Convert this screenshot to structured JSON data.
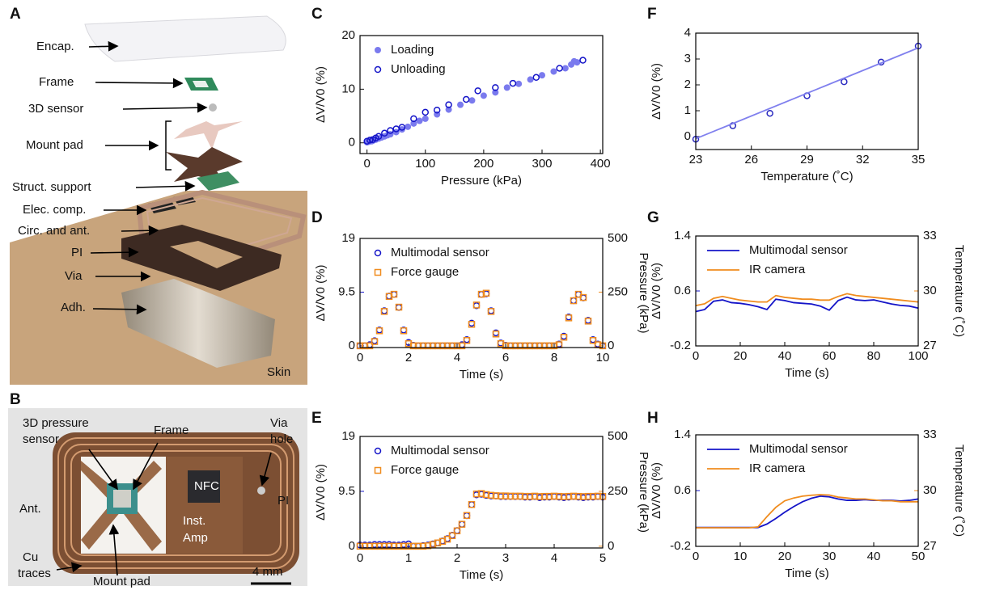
{
  "panels": {
    "A": {
      "label": "A",
      "annotations": [
        "Encap.",
        "Frame",
        "3D sensor",
        "Mount pad",
        "Struct. support",
        "Elec. comp.",
        "Circ. and ant.",
        "PI",
        "Via",
        "Adh.",
        "Skin"
      ]
    },
    "B": {
      "label": "B",
      "annotations": [
        [
          "3D pressure",
          "sensor"
        ],
        "Frame",
        [
          "Via",
          "hole"
        ],
        "Ant.",
        "PI",
        "NFC",
        [
          "Inst.",
          "Amp"
        ],
        [
          "Cu",
          "traces"
        ],
        "Mount pad",
        "4 mm"
      ]
    }
  },
  "chart_data": [
    {
      "type": "scatter",
      "panel": "C",
      "xlabel": "Pressure (kPa)",
      "ylabel": "ΔV/V0 (%)",
      "xlim": [
        -12,
        404
      ],
      "xticks": [
        0,
        100,
        200,
        300,
        400
      ],
      "ylim": [
        -2,
        20
      ],
      "yticks": [
        0,
        10,
        20
      ],
      "legend": "upper left",
      "series": [
        {
          "name": "Loading",
          "color": "#7a7aee",
          "marker": "circle",
          "x": [
            0,
            3,
            5,
            8,
            10,
            15,
            20,
            25,
            30,
            35,
            40,
            50,
            60,
            70,
            80,
            90,
            100,
            120,
            140,
            160,
            180,
            200,
            220,
            240,
            260,
            280,
            300,
            320,
            340,
            350,
            355,
            360
          ],
          "values": [
            0.1,
            0.2,
            0.3,
            0.3,
            0.4,
            0.6,
            0.8,
            1.0,
            1.2,
            1.4,
            1.6,
            2.0,
            2.5,
            3.0,
            3.6,
            4.1,
            4.5,
            5.3,
            6.2,
            7.1,
            7.9,
            8.8,
            9.4,
            10.3,
            11.0,
            11.8,
            12.6,
            13.3,
            13.9,
            14.6,
            15.2,
            15.0
          ]
        },
        {
          "name": "Unloading",
          "color": "#1414c8",
          "marker": "circle-open",
          "x": [
            0,
            5,
            10,
            15,
            20,
            30,
            40,
            50,
            60,
            80,
            100,
            120,
            140,
            170,
            190,
            220,
            250,
            290,
            330,
            370
          ],
          "values": [
            0.3,
            0.5,
            0.6,
            0.9,
            1.2,
            1.8,
            2.3,
            2.6,
            2.9,
            4.5,
            5.7,
            6.1,
            7.1,
            8.1,
            9.7,
            10.3,
            11.1,
            12.2,
            13.9,
            15.4
          ]
        }
      ]
    },
    {
      "type": "scatter",
      "panel": "D",
      "xlabel": "Time (s)",
      "ylabel": "ΔV/V0 (%)",
      "y2label": "Pressure (kPa)",
      "xlim": [
        0,
        10
      ],
      "xticks": [
        0,
        2,
        4,
        6,
        8,
        10
      ],
      "ylim": [
        -0.3,
        19
      ],
      "yticks": [
        0,
        9.5,
        19
      ],
      "y2lim": [
        -8,
        500
      ],
      "y2ticks": [
        0,
        250,
        500
      ],
      "y_color": "#1414c8",
      "y2_color": "#f08c1e",
      "legend": "upper left",
      "x": [
        0,
        0.2,
        0.4,
        0.6,
        0.8,
        1,
        1.2,
        1.4,
        1.6,
        1.8,
        2,
        2.2,
        2.4,
        2.6,
        2.8,
        3,
        3.2,
        3.4,
        3.6,
        3.8,
        4,
        4.2,
        4.4,
        4.6,
        4.8,
        5,
        5.2,
        5.4,
        5.6,
        5.8,
        6,
        6.2,
        6.4,
        6.6,
        6.8,
        7,
        7.2,
        7.4,
        7.6,
        7.8,
        8,
        8.2,
        8.4,
        8.6,
        8.8,
        9,
        9.2,
        9.4,
        9.6,
        9.8,
        10
      ],
      "series": [
        {
          "name": "Multimodal sensor",
          "color": "#1414c8",
          "marker": "circle-open",
          "values": [
            0,
            0,
            0.2,
            0.9,
            2.8,
            6.2,
            8.8,
            9.1,
            6.8,
            2.8,
            0.6,
            0.1,
            0,
            0,
            0,
            0,
            0,
            0,
            0,
            0,
            0,
            0.2,
            1.1,
            4,
            7.1,
            9.1,
            9.2,
            6.2,
            2.3,
            0.5,
            0.1,
            0,
            0,
            0,
            0,
            0,
            0,
            0,
            0,
            0,
            0,
            0.3,
            1.7,
            5.1,
            8,
            9.1,
            8.5,
            4.5,
            1.1,
            0.3,
            0
          ]
        },
        {
          "name": "Force gauge",
          "color": "#f08c1e",
          "marker": "square-open",
          "axis": "y2",
          "values": [
            0,
            0,
            0,
            20,
            70,
            160,
            230,
            240,
            180,
            70,
            10,
            0,
            0,
            0,
            0,
            0,
            0,
            0,
            0,
            0,
            0,
            0,
            25,
            100,
            190,
            240,
            245,
            160,
            55,
            10,
            0,
            0,
            0,
            0,
            0,
            0,
            0,
            0,
            0,
            0,
            0,
            5,
            40,
            130,
            210,
            240,
            225,
            115,
            25,
            5,
            0
          ]
        }
      ]
    },
    {
      "type": "scatter",
      "panel": "E",
      "xlabel": "Time (s)",
      "ylabel": "ΔV/V0 (%)",
      "y2label": "Pressure (kPa)",
      "xlim": [
        0,
        5
      ],
      "xticks": [
        0,
        1,
        2,
        3,
        4,
        5
      ],
      "ylim": [
        -0.3,
        19
      ],
      "yticks": [
        0,
        9.5,
        19
      ],
      "y2lim": [
        -8,
        500
      ],
      "y2ticks": [
        0,
        250,
        500
      ],
      "y_color": "#1414c8",
      "y2_color": "#f08c1e",
      "legend": "upper left",
      "x": [
        0,
        0.1,
        0.2,
        0.3,
        0.4,
        0.5,
        0.6,
        0.7,
        0.8,
        0.9,
        1,
        1.1,
        1.2,
        1.3,
        1.4,
        1.5,
        1.6,
        1.7,
        1.8,
        1.9,
        2,
        2.1,
        2.2,
        2.3,
        2.4,
        2.5,
        2.6,
        2.7,
        2.8,
        2.9,
        3,
        3.1,
        3.2,
        3.3,
        3.4,
        3.5,
        3.6,
        3.7,
        3.8,
        3.9,
        4,
        4.1,
        4.2,
        4.3,
        4.4,
        4.5,
        4.6,
        4.7,
        4.8,
        4.9,
        5
      ],
      "series": [
        {
          "name": "Multimodal sensor",
          "color": "#1414c8",
          "marker": "circle-open",
          "values": [
            0.2,
            0.2,
            0.2,
            0.3,
            0.3,
            0.3,
            0.3,
            0.2,
            0.2,
            0.3,
            0.4,
            0,
            0,
            0.1,
            0.2,
            0.4,
            0.6,
            0.9,
            1.3,
            1.9,
            2.7,
            3.8,
            5.3,
            7.2,
            8.9,
            9,
            8.8,
            8.7,
            8.7,
            8.6,
            8.6,
            8.6,
            8.6,
            8.6,
            8.5,
            8.5,
            8.6,
            8.4,
            8.5,
            8.5,
            8.6,
            8.5,
            8.4,
            8.5,
            8.6,
            8.5,
            8.4,
            8.5,
            8.5,
            8.6,
            8.5
          ]
        },
        {
          "name": "Force gauge",
          "color": "#f08c1e",
          "marker": "square-open",
          "axis": "y2",
          "values": [
            0,
            0,
            0,
            0,
            0,
            0,
            0,
            0,
            0,
            0,
            0,
            0,
            0,
            0,
            2,
            8,
            15,
            22,
            32,
            48,
            70,
            100,
            140,
            190,
            238,
            240,
            235,
            232,
            230,
            229,
            229,
            228,
            228,
            228,
            227,
            227,
            228,
            226,
            227,
            227,
            228,
            227,
            226,
            227,
            228,
            227,
            226,
            227,
            227,
            228,
            227
          ]
        }
      ]
    },
    {
      "type": "scatter",
      "panel": "F",
      "xlabel": "Temperature (˚C)",
      "ylabel": "ΔV/V0 (%)",
      "xlim": [
        23,
        35
      ],
      "xticks": [
        23,
        26,
        29,
        32,
        35
      ],
      "ylim": [
        -0.5,
        4
      ],
      "yticks": [
        0,
        1,
        2,
        3,
        4
      ],
      "series": [
        {
          "color": "#2a2ac0",
          "marker": "circle-open",
          "x": [
            23,
            25,
            27,
            29,
            31,
            33,
            35
          ],
          "values": [
            -0.1,
            0.42,
            0.9,
            1.58,
            2.12,
            2.88,
            3.5
          ]
        },
        {
          "type": "line",
          "color": "#8080ee",
          "x": [
            23,
            35
          ],
          "values": [
            -0.08,
            3.43
          ]
        }
      ]
    },
    {
      "type": "line",
      "panel": "G",
      "xlabel": "Time (s)",
      "ylabel": "ΔV/V0 (%)",
      "y2label": "Temperature (˚C)",
      "xlim": [
        0,
        100
      ],
      "xticks": [
        0,
        20,
        40,
        60,
        80,
        100
      ],
      "ylim": [
        -0.2,
        1.4
      ],
      "yticks": [
        -0.2,
        0.6,
        1.4
      ],
      "y2lim": [
        27,
        33
      ],
      "y2ticks": [
        27,
        30,
        33
      ],
      "y_color": "#1414c8",
      "y2_color": "#f08c1e",
      "legend": "upper left",
      "x": [
        0,
        4,
        8,
        12,
        16,
        20,
        24,
        28,
        32,
        36,
        40,
        44,
        48,
        52,
        56,
        60,
        64,
        68,
        72,
        76,
        80,
        84,
        88,
        92,
        96,
        100
      ],
      "series": [
        {
          "name": "Multimodal sensor",
          "color": "#1414c8",
          "values": [
            0.3,
            0.33,
            0.45,
            0.47,
            0.43,
            0.42,
            0.4,
            0.37,
            0.33,
            0.48,
            0.46,
            0.43,
            0.42,
            0.41,
            0.38,
            0.32,
            0.46,
            0.51,
            0.47,
            0.46,
            0.47,
            0.44,
            0.41,
            0.39,
            0.38,
            0.35
          ]
        },
        {
          "name": "IR camera",
          "color": "#f08c1e",
          "axis": "y2",
          "values": [
            29.2,
            29.3,
            29.6,
            29.7,
            29.6,
            29.5,
            29.45,
            29.4,
            29.4,
            29.75,
            29.65,
            29.6,
            29.55,
            29.55,
            29.5,
            29.5,
            29.7,
            29.85,
            29.75,
            29.7,
            29.65,
            29.6,
            29.55,
            29.5,
            29.45,
            29.4
          ]
        }
      ]
    },
    {
      "type": "line",
      "panel": "H",
      "xlabel": "Time (s)",
      "ylabel": "ΔV/V0 (%)",
      "y2label": "Temperature (˚C)",
      "xlim": [
        0,
        50
      ],
      "xticks": [
        0,
        10,
        20,
        30,
        40,
        50
      ],
      "ylim": [
        -0.2,
        1.4
      ],
      "yticks": [
        -0.2,
        0.6,
        1.4
      ],
      "y2lim": [
        27,
        33
      ],
      "y2ticks": [
        27,
        30,
        33
      ],
      "y_color": "#1414c8",
      "y2_color": "#f08c1e",
      "legend": "upper left",
      "x": [
        0,
        2,
        4,
        6,
        8,
        10,
        12,
        14,
        16,
        18,
        20,
        22,
        24,
        26,
        28,
        30,
        32,
        34,
        36,
        38,
        40,
        42,
        44,
        46,
        48,
        50
      ],
      "series": [
        {
          "name": "Multimodal sensor",
          "color": "#1414c8",
          "values": [
            0.07,
            0.07,
            0.07,
            0.07,
            0.07,
            0.07,
            0.07,
            0.07,
            0.12,
            0.2,
            0.29,
            0.37,
            0.44,
            0.49,
            0.52,
            0.51,
            0.48,
            0.46,
            0.46,
            0.47,
            0.46,
            0.46,
            0.46,
            0.45,
            0.46,
            0.48
          ]
        },
        {
          "name": "IR camera",
          "color": "#f08c1e",
          "axis": "y2",
          "values": [
            28,
            28,
            28,
            28,
            28,
            28,
            28,
            28.05,
            28.6,
            29.1,
            29.45,
            29.6,
            29.7,
            29.75,
            29.78,
            29.76,
            29.65,
            29.6,
            29.55,
            29.55,
            29.5,
            29.45,
            29.45,
            29.4,
            29.4,
            29.4
          ]
        }
      ]
    }
  ]
}
